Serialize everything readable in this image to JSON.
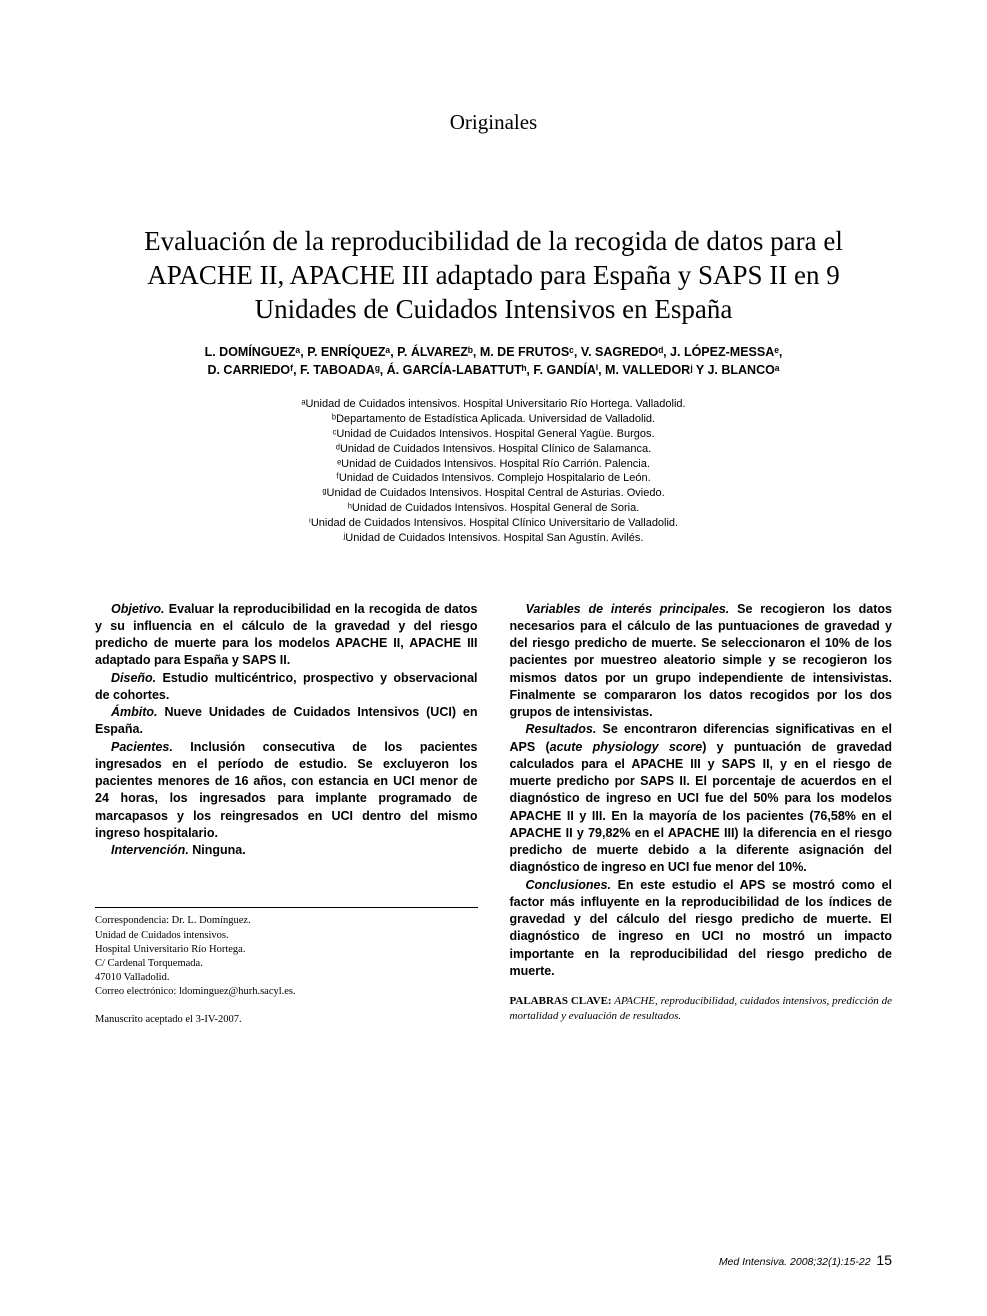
{
  "section_label": "Originales",
  "title": "Evaluación de la reproducibilidad de la recogida de datos para el APACHE II, APACHE III adaptado para España y SAPS II en 9 Unidades de Cuidados Intensivos en España",
  "authors_line1": "L. DOMÍNGUEZᵃ, P. ENRÍQUEZᵃ, P. ÁLVAREZᵇ, M. DE FRUTOSᶜ, V. SAGREDOᵈ, J. LÓPEZ-MESSAᵉ,",
  "authors_line2": "D. CARRIEDOᶠ, F. TABOADAᵍ, Á. GARCÍA-LABATTUTʰ, F. GANDÍAⁱ, M. VALLEDORʲ Y J. BLANCOᵃ",
  "affiliations": [
    "ᵃUnidad de Cuidados intensivos. Hospital Universitario Río Hortega. Valladolid.",
    "ᵇDepartamento de Estadística Aplicada. Universidad de Valladolid.",
    "ᶜUnidad de Cuidados Intensivos. Hospital General Yagüe. Burgos.",
    "ᵈUnidad de Cuidados Intensivos. Hospital Clínico de Salamanca.",
    "ᵉUnidad de Cuidados Intensivos. Hospital Río Carrión. Palencia.",
    "ᶠUnidad de Cuidados Intensivos. Complejo Hospitalario de León.",
    "ᵍUnidad de Cuidados Intensivos. Hospital Central de Asturias. Oviedo.",
    "ʰUnidad de Cuidados Intensivos. Hospital General de Soria.",
    "ⁱUnidad de Cuidados Intensivos. Hospital Clínico Universitario de Valladolid.",
    "ʲUnidad de Cuidados Intensivos. Hospital San Agustín. Avilés."
  ],
  "abstract_left": [
    {
      "label": "Objetivo.",
      "text": " Evaluar la reproducibilidad en la recogida de datos y su influencia en el cálculo de la gravedad y del riesgo predicho de muerte para los modelos APACHE II, APACHE III adaptado para España y SAPS II."
    },
    {
      "label": "Diseño.",
      "text": " Estudio multicéntrico, prospectivo y observacional de cohortes."
    },
    {
      "label": "Ámbito.",
      "text": " Nueve Unidades de Cuidados Intensivos (UCI) en España."
    },
    {
      "label": "Pacientes.",
      "text": " Inclusión consecutiva de los pacientes ingresados en el período de estudio. Se excluyeron los pacientes menores de 16 años, con estancia en UCI menor de 24 horas, los ingresados para implante programado de marcapasos y los reingresados en UCI dentro del mismo ingreso hospitalario."
    },
    {
      "label": "Intervención.",
      "text": " Ninguna."
    }
  ],
  "abstract_right": [
    {
      "label": "Variables de interés principales.",
      "text": " Se recogieron los datos necesarios para el cálculo de las puntuaciones de gravedad y del riesgo predicho de muerte. Se seleccionaron el 10% de los pacientes por muestreo aleatorio simple y se recogieron los mismos datos por un grupo independiente de intensivistas. Finalmente se compararon los datos recogidos por los dos grupos de intensivistas."
    },
    {
      "label": "Resultados.",
      "text": " Se encontraron diferencias significativas en el APS (",
      "italic": "acute physiology score",
      "text2": ") y puntuación de gravedad calculados para el APACHE III y SAPS II, y en el riesgo de muerte predicho por SAPS II. El porcentaje de acuerdos en el diagnóstico de ingreso en UCI fue del 50% para los modelos APACHE II y III. En la mayoría de los pacientes (76,58% en el APACHE II y 79,82% en el APACHE III) la diferencia en el riesgo predicho de muerte debido a la diferente asignación del diagnóstico de ingreso en UCI fue menor del 10%."
    },
    {
      "label": "Conclusiones.",
      "text": " En este estudio el APS se mostró como el factor más influyente en la reproducibilidad de los índices de gravedad y del cálculo del riesgo predicho de muerte. El diagnóstico de ingreso en UCI no mostró un impacto importante en la reproducibilidad del riesgo predicho de muerte."
    }
  ],
  "keywords_label": "PALABRAS CLAVE:",
  "keywords_text": " APACHE, reproducibilidad, cuidados intensivos, predicción de mortalidad y evaluación de resultados.",
  "correspondence": [
    "Correspondencia: Dr. L. Domínguez.",
    "Unidad de Cuidados intensivos.",
    "Hospital Universitario Río Hortega.",
    "C/ Cardenal Torquemada.",
    "47010 Valladolid.",
    "Correo electrónico: ldominguez@hurh.sacyl.es."
  ],
  "manuscript": "Manuscrito aceptado el 3-IV-2007.",
  "footer_citation": "Med Intensiva. 2008;32(1):15-22",
  "footer_page": "15",
  "colors": {
    "text": "#000000",
    "background": "#ffffff",
    "rule": "#000000"
  },
  "typography": {
    "section_label_size": 21,
    "title_size": 27,
    "authors_size": 12.5,
    "affiliations_size": 11,
    "abstract_size": 12.5,
    "correspondence_size": 10.5,
    "keywords_size": 11,
    "footer_size": 10.5
  }
}
